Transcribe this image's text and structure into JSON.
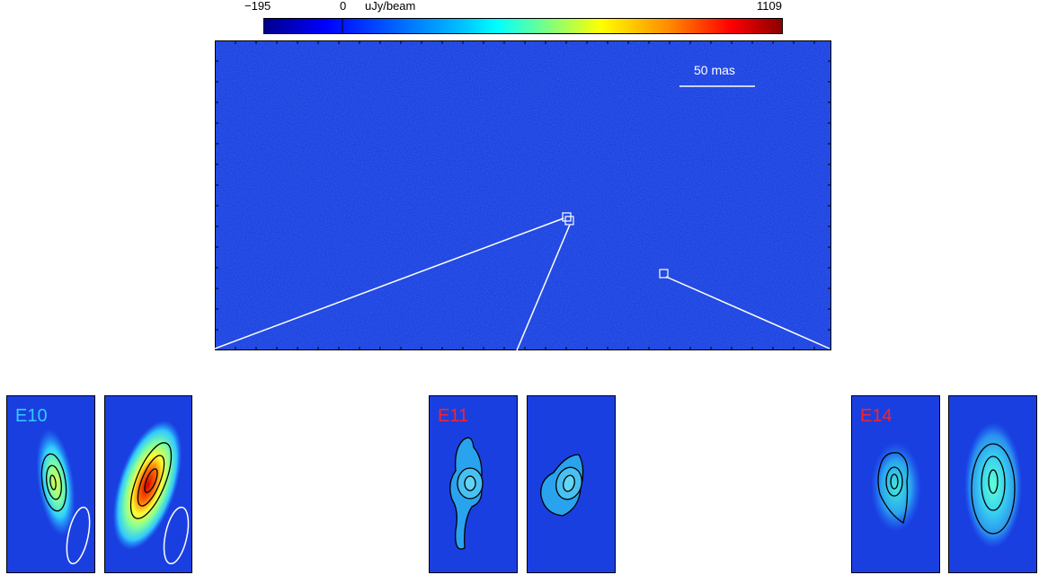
{
  "colorbar": {
    "min_label": "−195",
    "zero_label": "0",
    "unit_label": "uJy/beam",
    "max_label": "1109",
    "colors": [
      "#00008b",
      "#0000ff",
      "#00bfff",
      "#00ffff",
      "#7fff7f",
      "#ffff00",
      "#ff8c00",
      "#ff0000",
      "#8b0000"
    ]
  },
  "main_map": {
    "background_color": "#1a3fe0",
    "scale_bar_label": "50 mas"
  },
  "panels": [
    {
      "tag": "E10",
      "tag_color": "#33ccff"
    },
    {
      "tag": "E11",
      "tag_color": "#ff2222"
    },
    {
      "tag": "E14",
      "tag_color": "#ff2222"
    }
  ]
}
